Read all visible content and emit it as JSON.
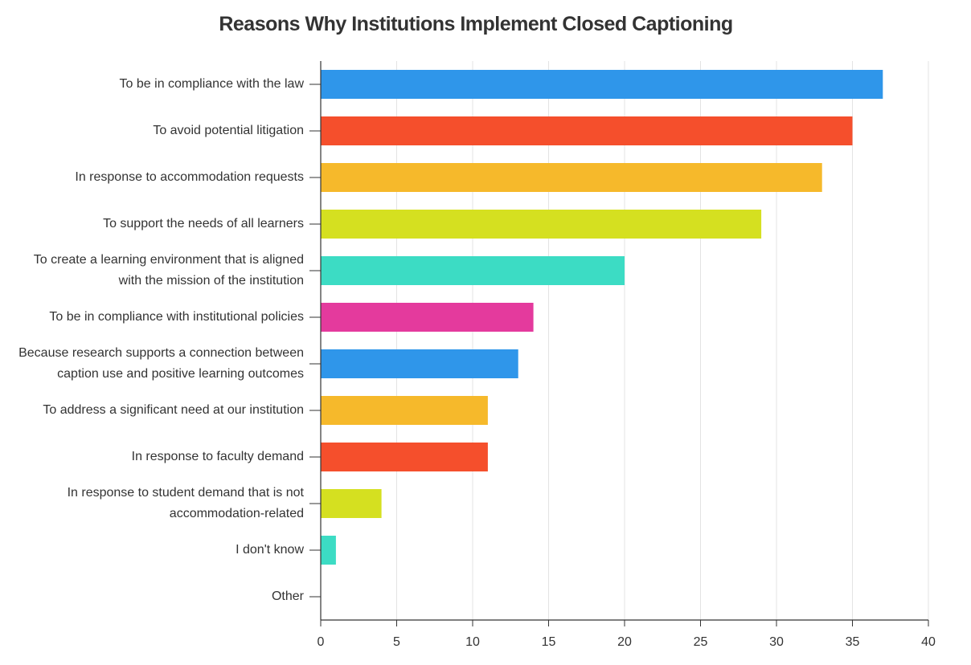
{
  "chart_data": {
    "type": "bar",
    "orientation": "horizontal",
    "title": "Reasons Why Institutions Implement Closed Captioning",
    "xlabel": "",
    "ylabel": "",
    "xlim": [
      0,
      40
    ],
    "xticks": [
      0,
      5,
      10,
      15,
      20,
      25,
      30,
      35,
      40
    ],
    "grid": true,
    "legend": "none",
    "categories": [
      "To be in compliance with the law",
      "To avoid potential litigation",
      "In response to accommodation requests",
      "To support the needs of all learners",
      "To create a learning environment that is aligned with the mission of the institution",
      "To be in compliance with institutional policies",
      "Because research supports a connection between caption use and positive learning outcomes",
      "To address a significant need at our institution",
      "In response to faculty demand",
      "In response to student demand that is not accommodation-related",
      "I don't know",
      "Other"
    ],
    "values": [
      37,
      35,
      33,
      29,
      20,
      14,
      13,
      11,
      11,
      4,
      1,
      0
    ],
    "colors": [
      "#2f96ea",
      "#f54f2c",
      "#f6b92b",
      "#d5e020",
      "#3cdcc4",
      "#e43a9d",
      "#2f96ea",
      "#f6b92b",
      "#f54f2c",
      "#d5e020",
      "#3cdcc4",
      "#e43a9d"
    ]
  }
}
